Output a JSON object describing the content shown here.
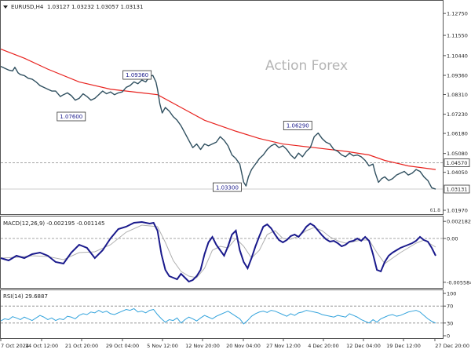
{
  "header": {
    "symbol": "EURUSD,H4",
    "ohlc": "1.03127 1.03232 1.03057 1.03131"
  },
  "watermark": "Action Forex",
  "colors": {
    "candles": "#2f4f5f",
    "ma": "#e8231f",
    "macd": "#1a1a8c",
    "signal": "#b0b0b0",
    "rsi": "#33a3dc",
    "price_box_text": "#1a1a8c",
    "grid_dashed": "#888888"
  },
  "chart_data": [
    {
      "type": "line",
      "title": "EURUSD,H4",
      "x_ticks": [
        "7 Oct 2024",
        "14 Oct 12:00",
        "21 Oct 20:00",
        "29 Oct 04:00",
        "5 Nov 12:00",
        "12 Nov 20:00",
        "20 Nov 04:00",
        "27 Nov 12:00",
        "4 Dec 20:00",
        "12 Dec 04:00",
        "19 Dec 12:00",
        "27 Dec 20:00"
      ],
      "y_ticks": [
        "1.12750",
        "1.11550",
        "1.10440",
        "1.09360",
        "1.08310",
        "1.07230",
        "1.06180",
        "1.05080",
        "1.04050",
        "1.01970"
      ],
      "ylim": [
        1.018,
        1.134
      ],
      "current_price_label": "1.03131",
      "level_label": "1.04570",
      "fib_label": "61.8",
      "price_series": {
        "x": [
          0,
          5,
          10,
          15,
          18,
          22,
          25,
          30,
          35,
          40,
          45,
          50,
          55,
          60,
          65,
          70,
          76,
          80,
          85,
          90,
          95,
          100,
          105,
          110,
          115,
          120,
          125,
          130,
          135,
          140,
          145,
          150,
          155,
          160,
          165,
          170,
          175,
          180,
          185,
          190,
          194,
          198,
          200,
          203,
          206,
          210,
          215,
          220,
          225,
          230,
          235,
          240,
          245,
          250,
          255,
          260,
          265,
          270,
          275,
          280,
          285,
          290,
          295,
          300,
          305,
          310,
          313,
          316,
          320,
          325,
          330,
          335,
          340,
          345,
          350,
          355,
          360,
          365,
          370,
          375,
          380,
          385,
          390,
          395,
          400,
          405,
          410,
          415,
          420,
          425,
          430,
          435,
          440,
          445,
          450,
          455,
          460,
          465,
          470,
          475,
          478,
          482,
          486,
          490,
          495,
          500,
          505,
          510,
          515,
          520,
          525,
          530,
          535,
          540,
          545,
          550,
          555
        ],
        "y": [
          1.0985,
          1.0975,
          1.0965,
          1.096,
          1.098,
          1.095,
          1.094,
          1.0935,
          1.092,
          1.0915,
          1.09,
          1.088,
          1.087,
          1.086,
          1.085,
          1.085,
          1.082,
          1.083,
          1.084,
          1.0825,
          1.08,
          1.081,
          1.0835,
          1.082,
          1.08,
          1.081,
          1.083,
          1.085,
          1.0835,
          1.0845,
          1.083,
          1.084,
          1.0845,
          1.087,
          1.088,
          1.09,
          1.089,
          1.091,
          1.09,
          1.093,
          1.0936,
          1.09,
          1.086,
          1.078,
          1.073,
          1.076,
          1.074,
          1.071,
          1.069,
          1.066,
          1.062,
          1.058,
          1.054,
          1.056,
          1.053,
          1.056,
          1.055,
          1.056,
          1.057,
          1.06,
          1.058,
          1.055,
          1.05,
          1.048,
          1.045,
          1.035,
          1.033,
          1.038,
          1.042,
          1.045,
          1.048,
          1.05,
          1.053,
          1.055,
          1.056,
          1.054,
          1.055,
          1.053,
          1.05,
          1.048,
          1.051,
          1.049,
          1.052,
          1.054,
          1.06,
          1.062,
          1.059,
          1.057,
          1.056,
          1.053,
          1.052,
          1.05,
          1.049,
          1.051,
          1.0495,
          1.05,
          1.049,
          1.047,
          1.044,
          1.045,
          1.04,
          1.035,
          1.037,
          1.038,
          1.036,
          1.037,
          1.039,
          1.04,
          1.041,
          1.039,
          1.04,
          1.042,
          1.041,
          1.038,
          1.036,
          1.032,
          1.0313
        ]
      },
      "ma_series": {
        "x": [
          0,
          30,
          60,
          100,
          140,
          180,
          200,
          230,
          260,
          300,
          330,
          360,
          400,
          440,
          470,
          490,
          520,
          555
        ],
        "y": [
          1.108,
          1.103,
          1.097,
          1.09,
          1.086,
          1.084,
          1.083,
          1.076,
          1.069,
          1.063,
          1.059,
          1.056,
          1.054,
          1.052,
          1.05,
          1.047,
          1.044,
          1.042
        ]
      },
      "annotations": [
        {
          "label": "1.09360",
          "x": 194,
          "y": 1.0936
        },
        {
          "label": "1.07600",
          "x": 120,
          "y": 1.076
        },
        {
          "label": "1.06290",
          "x": 395,
          "y": 1.0629
        },
        {
          "label": "1.03300",
          "x": 313,
          "y": 1.033
        }
      ]
    },
    {
      "type": "line",
      "title": "MACD(12,26,9) -0.002195 -0.001145",
      "y_ticks": [
        "0.002182",
        "0.00",
        "-0.005584"
      ],
      "ylim": [
        -0.0062,
        0.0026
      ],
      "series": [
        {
          "name": "MACD",
          "x": [
            0,
            10,
            20,
            30,
            40,
            50,
            60,
            70,
            80,
            90,
            100,
            110,
            120,
            130,
            140,
            150,
            160,
            170,
            180,
            190,
            195,
            200,
            205,
            210,
            215,
            220,
            225,
            230,
            235,
            240,
            245,
            250,
            255,
            260,
            265,
            270,
            275,
            280,
            285,
            290,
            295,
            300,
            305,
            310,
            315,
            320,
            325,
            330,
            335,
            340,
            345,
            350,
            355,
            360,
            365,
            370,
            375,
            380,
            385,
            390,
            395,
            400,
            405,
            410,
            415,
            420,
            425,
            430,
            435,
            440,
            445,
            450,
            455,
            460,
            465,
            470,
            475,
            480,
            485,
            490,
            495,
            500,
            505,
            510,
            515,
            520,
            525,
            530,
            535,
            540,
            545,
            550,
            555
          ],
          "y": [
            -0.0025,
            -0.0028,
            -0.0022,
            -0.0025,
            -0.002,
            -0.0018,
            -0.0022,
            -0.003,
            -0.0032,
            -0.0018,
            -0.0008,
            -0.0012,
            -0.0025,
            -0.0015,
            0.0,
            0.0012,
            0.0015,
            0.002,
            0.0021,
            0.0019,
            0.002,
            0.001,
            -0.002,
            -0.004,
            -0.0048,
            -0.005,
            -0.0052,
            -0.0045,
            -0.005,
            -0.0055,
            -0.0053,
            -0.0048,
            -0.004,
            -0.002,
            -0.0005,
            0.0002,
            -0.0008,
            -0.0015,
            -0.0022,
            -0.001,
            0.0005,
            0.001,
            -0.0015,
            -0.003,
            -0.0038,
            -0.0025,
            -0.001,
            0.0003,
            0.0015,
            0.0018,
            0.0013,
            0.0005,
            -0.0002,
            -0.0005,
            -0.0002,
            0.0003,
            0.0005,
            0.0002,
            0.0008,
            0.0015,
            0.0019,
            0.0016,
            0.001,
            0.0004,
            -0.0001,
            -0.0004,
            -0.0003,
            -0.0006,
            -0.001,
            -0.0008,
            -0.0004,
            -0.0003,
            0.0,
            -0.0003,
            0.0002,
            -0.0003,
            -0.002,
            -0.004,
            -0.0042,
            -0.003,
            -0.0022,
            -0.0018,
            -0.0015,
            -0.0012,
            -0.001,
            -0.0008,
            -0.0006,
            -0.0003,
            0.0002,
            -0.0002,
            -0.0004,
            -0.0012,
            -0.0022
          ]
        },
        {
          "name": "Signal",
          "x": [
            0,
            20,
            40,
            60,
            80,
            100,
            120,
            140,
            160,
            180,
            200,
            210,
            220,
            230,
            240,
            250,
            260,
            270,
            280,
            290,
            300,
            310,
            320,
            330,
            340,
            350,
            360,
            370,
            380,
            390,
            400,
            410,
            420,
            430,
            440,
            450,
            460,
            470,
            480,
            490,
            500,
            510,
            520,
            530,
            540,
            550,
            555
          ],
          "y": [
            -0.0025,
            -0.0024,
            -0.0022,
            -0.0023,
            -0.0027,
            -0.0018,
            -0.0017,
            -0.0008,
            0.0008,
            0.0017,
            0.0015,
            -0.0005,
            -0.0028,
            -0.0042,
            -0.0048,
            -0.005,
            -0.0038,
            -0.0015,
            -0.001,
            -0.0012,
            0.0,
            -0.001,
            -0.0025,
            -0.0015,
            0.0005,
            0.001,
            0.0,
            -0.0001,
            0.0003,
            0.001,
            0.0014,
            0.001,
            0.0002,
            -0.0003,
            -0.0006,
            -0.0004,
            -0.0002,
            -0.0002,
            -0.0018,
            -0.0032,
            -0.0025,
            -0.0018,
            -0.0012,
            -0.0006,
            -0.0002,
            -0.0008,
            -0.0011
          ]
        }
      ]
    },
    {
      "type": "line",
      "title": "RSI(14) 29.6887",
      "y_ticks": [
        "100",
        "70",
        "30",
        "0"
      ],
      "ylim": [
        0,
        100
      ],
      "series": [
        {
          "name": "RSI",
          "x": [
            0,
            5,
            10,
            15,
            20,
            25,
            30,
            35,
            40,
            45,
            50,
            55,
            60,
            65,
            70,
            75,
            80,
            85,
            90,
            95,
            100,
            105,
            110,
            115,
            120,
            125,
            130,
            135,
            140,
            145,
            150,
            155,
            160,
            165,
            170,
            175,
            180,
            185,
            190,
            195,
            200,
            205,
            210,
            215,
            220,
            225,
            230,
            235,
            240,
            245,
            250,
            255,
            260,
            265,
            270,
            275,
            280,
            285,
            290,
            295,
            300,
            305,
            310,
            315,
            320,
            325,
            330,
            335,
            340,
            345,
            350,
            355,
            360,
            365,
            370,
            375,
            380,
            385,
            390,
            395,
            400,
            405,
            410,
            415,
            420,
            425,
            430,
            435,
            440,
            445,
            450,
            455,
            460,
            465,
            470,
            475,
            480,
            485,
            490,
            495,
            500,
            505,
            510,
            515,
            520,
            525,
            530,
            535,
            540,
            545,
            550,
            555
          ],
          "y": [
            35,
            40,
            38,
            45,
            42,
            38,
            44,
            40,
            36,
            42,
            48,
            44,
            38,
            42,
            36,
            40,
            38,
            46,
            44,
            40,
            48,
            52,
            50,
            56,
            54,
            60,
            55,
            58,
            52,
            50,
            54,
            58,
            62,
            60,
            64,
            56,
            58,
            54,
            60,
            62,
            50,
            40,
            32,
            38,
            36,
            42,
            30,
            38,
            44,
            40,
            35,
            42,
            48,
            44,
            40,
            46,
            50,
            54,
            58,
            52,
            46,
            40,
            28,
            36,
            46,
            52,
            56,
            58,
            55,
            60,
            58,
            54,
            50,
            46,
            52,
            48,
            54,
            56,
            60,
            58,
            56,
            54,
            50,
            48,
            46,
            44,
            48,
            46,
            44,
            52,
            48,
            44,
            38,
            34,
            30,
            38,
            32,
            40,
            44,
            48,
            50,
            46,
            48,
            52,
            56,
            58,
            60,
            56,
            48,
            40,
            34,
            29.7
          ]
        }
      ]
    }
  ]
}
